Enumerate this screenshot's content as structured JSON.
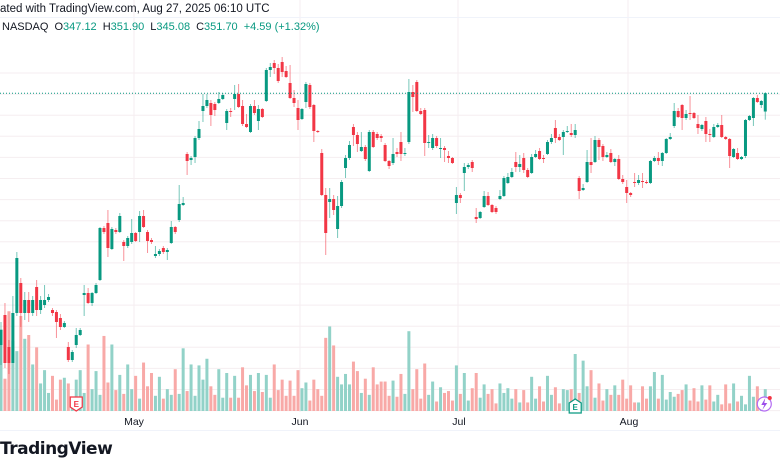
{
  "header": {
    "created_text": "ated with TradingView.com, Aug 27, 2025 06:10 UTC",
    "exchange": "NASDAQ",
    "open_label": "O",
    "open": "347.12",
    "high_label": "H",
    "high": "351.90",
    "low_label": "L",
    "low": "345.08",
    "close_label": "C",
    "close": "351.70",
    "change": "+4.59 (+1.32%)"
  },
  "logo": "TradingView",
  "colors": {
    "up": "#089981",
    "down": "#F23645",
    "up_vol": "#92d2c8",
    "down_vol": "#f8a9a7",
    "grid": "#f5eef0",
    "price_line": "#089981"
  },
  "chart_data": {
    "type": "candlestick",
    "symbol_exchange": "NASDAQ",
    "x_labels": [
      "May",
      "Jun",
      "Jul",
      "Aug"
    ],
    "last_price": 351.7,
    "markers": [
      {
        "type": "earnings",
        "label": "E",
        "direction": "down",
        "index": 19
      },
      {
        "type": "earnings",
        "label": "E",
        "direction": "up",
        "index": 145
      },
      {
        "type": "event",
        "label": "lightning",
        "index": 193
      }
    ],
    "ohlc": [
      [
        288.75,
        294.5,
        283.75,
        292.5
      ],
      [
        296.25,
        299.25,
        283,
        284.25
      ],
      [
        288.25,
        290,
        281.5,
        284.25
      ],
      [
        284.25,
        301,
        285,
        296.75
      ],
      [
        296.75,
        312,
        296,
        310.5
      ],
      [
        304.25,
        305.5,
        293.25,
        296.75
      ],
      [
        296.75,
        302,
        295,
        300
      ],
      [
        300,
        302,
        294.5,
        296.75
      ],
      [
        296.75,
        301,
        296,
        300
      ],
      [
        303.25,
        305,
        296,
        297.5
      ],
      [
        297.5,
        301,
        296.5,
        300
      ],
      [
        298.75,
        303.75,
        298,
        300
      ],
      [
        300,
        301.5,
        299.5,
        300.75
      ],
      [
        297.5,
        298,
        296,
        296.75
      ],
      [
        297,
        297.5,
        290.5,
        294.5
      ],
      [
        295.5,
        296.5,
        292.5,
        293.25
      ],
      [
        293.25,
        294.75,
        293,
        294.25
      ],
      [
        288.25,
        289.5,
        284.5,
        285
      ],
      [
        285,
        287.5,
        284.5,
        287
      ],
      [
        288.75,
        293,
        288,
        291.25
      ],
      [
        291.25,
        293,
        291,
        292.5
      ],
      [
        301.25,
        303.75,
        296,
        301.75
      ],
      [
        301.75,
        303,
        299,
        299.25
      ],
      [
        299.25,
        302,
        298.5,
        301.75
      ],
      [
        301.75,
        304.25,
        301.5,
        303.75
      ],
      [
        305,
        318.25,
        304.75,
        318
      ],
      [
        318,
        318.5,
        316.5,
        317
      ],
      [
        319.25,
        322.5,
        310.75,
        313
      ],
      [
        312.75,
        318.25,
        312.5,
        317.75
      ],
      [
        317.5,
        318,
        316.5,
        317
      ],
      [
        317,
        321.75,
        316.75,
        321
      ],
      [
        314.5,
        315,
        309.75,
        313.5
      ],
      [
        313.5,
        316,
        313,
        315.5
      ],
      [
        314.5,
        320.25,
        314,
        316.75
      ],
      [
        316.75,
        317,
        314.5,
        314.75
      ],
      [
        317,
        322.25,
        314.5,
        321
      ],
      [
        321,
        322.5,
        318,
        318.25
      ],
      [
        317,
        317.5,
        311.75,
        314.75
      ],
      [
        315,
        315.5,
        314,
        314.5
      ],
      [
        311,
        313.5,
        310.5,
        311.5
      ],
      [
        311.5,
        312.75,
        311,
        312.25
      ],
      [
        313,
        313.5,
        311.5,
        312
      ],
      [
        312,
        313,
        310,
        312.5
      ],
      [
        314.25,
        319.75,
        314,
        318.25
      ],
      [
        318.25,
        318.5,
        316.5,
        317
      ],
      [
        320,
        328.75,
        319.5,
        324
      ],
      [
        323.75,
        325.75,
        323.5,
        324.25
      ],
      [
        336.5,
        337,
        331.25,
        334.75
      ],
      [
        335,
        336,
        333.75,
        335.5
      ],
      [
        335.75,
        341,
        334.25,
        340.5
      ],
      [
        340.5,
        344.75,
        340,
        342.75
      ],
      [
        347.25,
        351.5,
        344.5,
        348.5
      ],
      [
        348.5,
        351.5,
        348,
        350
      ],
      [
        349.25,
        350,
        343.5,
        346.25
      ],
      [
        349,
        349.5,
        346,
        347.5
      ],
      [
        349.25,
        352,
        349,
        350.25
      ],
      [
        350.25,
        351.75,
        350,
        351.25
      ],
      [
        344.25,
        347.75,
        342.5,
        347.25
      ],
      [
        347.25,
        348,
        345.75,
        347
      ],
      [
        350.25,
        353.75,
        347.5,
        351.5
      ],
      [
        351.5,
        354,
        348,
        348.25
      ],
      [
        348.5,
        350,
        343.5,
        344
      ],
      [
        344,
        346.5,
        343,
        343.25
      ],
      [
        342,
        349,
        341.75,
        348.5
      ],
      [
        348.5,
        350,
        346.25,
        346.75
      ],
      [
        344.75,
        348.75,
        342.5,
        347.75
      ],
      [
        347.75,
        348,
        345.5,
        345.75
      ],
      [
        349.75,
        358,
        349.5,
        357.5
      ],
      [
        357.5,
        359.25,
        355.75,
        358.25
      ],
      [
        359.25,
        360,
        356.5,
        358
      ],
      [
        358,
        359,
        354.25,
        354.75
      ],
      [
        359.5,
        360.75,
        355.75,
        357
      ],
      [
        357.25,
        358.5,
        355.5,
        355.75
      ],
      [
        354.25,
        358.75,
        350.25,
        350.5
      ],
      [
        350.5,
        352.5,
        348.25,
        349.25
      ],
      [
        348,
        350,
        342.5,
        345
      ],
      [
        345.25,
        348,
        345,
        347.75
      ],
      [
        349.5,
        354.5,
        348,
        354
      ],
      [
        353.75,
        354.25,
        347.75,
        348.25
      ],
      [
        348.75,
        349,
        339.5,
        342.25
      ],
      [
        342.25,
        342.5,
        341.75,
        342
      ],
      [
        336.75,
        337.75,
        326,
        326.25
      ],
      [
        326.25,
        328,
        311.25,
        316.75
      ],
      [
        324.5,
        328,
        320.5,
        325.25
      ],
      [
        325.25,
        326.25,
        321.25,
        322.5
      ],
      [
        317.75,
        326,
        315.5,
        323.5
      ],
      [
        323.5,
        330,
        323,
        329.5
      ],
      [
        333,
        336.25,
        330.5,
        335.5
      ],
      [
        335.5,
        339.75,
        335,
        338.75
      ],
      [
        343.25,
        344,
        338.5,
        341.25
      ],
      [
        341.25,
        342,
        337,
        339
      ],
      [
        337.25,
        342,
        337,
        338.25
      ],
      [
        338.25,
        338.75,
        334.75,
        335.25
      ],
      [
        332.25,
        342.5,
        332,
        342
      ],
      [
        342,
        342.5,
        338,
        338.25
      ],
      [
        341.5,
        342,
        340,
        340.5
      ],
      [
        341,
        341.5,
        339.5,
        340.5
      ],
      [
        338.75,
        339.25,
        334.5,
        334.75
      ],
      [
        334.75,
        335,
        332.75,
        333.5
      ],
      [
        334.25,
        340.5,
        333.75,
        336.5
      ],
      [
        337,
        338,
        335.75,
        336.5
      ],
      [
        339.5,
        342,
        334.75,
        336.5
      ],
      [
        336.5,
        338,
        336,
        336.75
      ],
      [
        339.5,
        355.25,
        339,
        352
      ],
      [
        352,
        353.75,
        347,
        350.75
      ],
      [
        354.5,
        355,
        347,
        347.25
      ],
      [
        347.25,
        348,
        346.25,
        346.5
      ],
      [
        347.5,
        348,
        336,
        339.25
      ],
      [
        339.25,
        341.25,
        338,
        339.5
      ],
      [
        338,
        341.5,
        337.5,
        340.5
      ],
      [
        340.5,
        341,
        338,
        338.5
      ],
      [
        337.75,
        340.5,
        335.5,
        338
      ],
      [
        338,
        338.5,
        334.5,
        337.5
      ],
      [
        336,
        337.25,
        334.25,
        335.5
      ],
      [
        335.5,
        335.75,
        334,
        334.25
      ],
      [
        324.25,
        328.25,
        321.5,
        326.25
      ],
      [
        326.25,
        326.75,
        324.25,
        325.5
      ],
      [
        331.75,
        334.25,
        327.25,
        333.25
      ],
      [
        333.25,
        334.25,
        332.75,
        333.75
      ],
      [
        334.5,
        335,
        332,
        333
      ],
      [
        320.75,
        323,
        319.25,
        320.25
      ],
      [
        320.5,
        322.25,
        320.25,
        322
      ],
      [
        323.25,
        327.25,
        323,
        326
      ],
      [
        326,
        327,
        323.5,
        323.75
      ],
      [
        323.75,
        324,
        321.75,
        322
      ],
      [
        323,
        323.5,
        321.5,
        322
      ],
      [
        325.25,
        327.5,
        325,
        326
      ],
      [
        326,
        331,
        325.75,
        330.5
      ],
      [
        329.25,
        331.75,
        329,
        330.75
      ],
      [
        330.75,
        333,
        330.5,
        332
      ],
      [
        334.5,
        337,
        332,
        333.25
      ],
      [
        333.25,
        336.25,
        332,
        334
      ],
      [
        335.5,
        336.75,
        331.75,
        332.5
      ],
      [
        332.5,
        333,
        330.5,
        330.75
      ],
      [
        331.75,
        336.5,
        331.5,
        335.75
      ],
      [
        335.75,
        337.5,
        335.5,
        336.5
      ],
      [
        337.25,
        338,
        335,
        335.25
      ],
      [
        335.5,
        336.25,
        334.25,
        335.25
      ],
      [
        336.5,
        340,
        336.25,
        339.5
      ],
      [
        339.5,
        341.5,
        339,
        340.5
      ],
      [
        343,
        345,
        339.25,
        340.5
      ],
      [
        340.75,
        341.5,
        339.75,
        340
      ],
      [
        340.75,
        342.5,
        336.25,
        342
      ],
      [
        342,
        343.5,
        341.75,
        342.25
      ],
      [
        341.75,
        344,
        340.75,
        341.25
      ],
      [
        341.25,
        344,
        340.5,
        342.5
      ],
      [
        330.5,
        331,
        325.25,
        327.25
      ],
      [
        327.5,
        329,
        327.25,
        328
      ],
      [
        329.5,
        337.5,
        329.25,
        334.5
      ],
      [
        334.5,
        340.5,
        331.75,
        333.75
      ],
      [
        334.5,
        341,
        334.25,
        340
      ],
      [
        340,
        340.5,
        335,
        338.25
      ],
      [
        338.5,
        339,
        334.75,
        335.75
      ],
      [
        335.75,
        337,
        335.5,
        336.25
      ],
      [
        336.75,
        337.75,
        334.25,
        334.5
      ],
      [
        334.5,
        335.5,
        333.5,
        335.25
      ],
      [
        335.25,
        336.25,
        330,
        330.25
      ],
      [
        330.25,
        331.25,
        329,
        329.5
      ],
      [
        328.25,
        330,
        324.25,
        326.75
      ],
      [
        326.75,
        327,
        325.75,
        326.25
      ],
      [
        329.5,
        331.75,
        328.25,
        329.25
      ],
      [
        329.25,
        331.25,
        328.75,
        330
      ],
      [
        329.75,
        331.75,
        328,
        329.5
      ],
      [
        329.5,
        330,
        329,
        329.25
      ],
      [
        329.25,
        335,
        329,
        334.75
      ],
      [
        334.75,
        336,
        334.5,
        335.5
      ],
      [
        335.5,
        337,
        333.75,
        334.75
      ],
      [
        334.75,
        337,
        333.5,
        336.75
      ],
      [
        336.75,
        340.5,
        336.5,
        340.25
      ],
      [
        340.25,
        341.75,
        340,
        340.75
      ],
      [
        343.5,
        349.25,
        343,
        347.25
      ],
      [
        347.25,
        348,
        345.5,
        345.75
      ],
      [
        348.75,
        349,
        342.5,
        345.5
      ],
      [
        345.5,
        347.5,
        345,
        346.5
      ],
      [
        346.75,
        351,
        345,
        346.5
      ],
      [
        346.75,
        347,
        345.25,
        345.5
      ],
      [
        344,
        346.25,
        341.5,
        343
      ],
      [
        342.75,
        344,
        342.25,
        343.75
      ],
      [
        344.75,
        345.75,
        339.5,
        341.5
      ],
      [
        341.5,
        342.75,
        339.5,
        341.25
      ],
      [
        340.75,
        344,
        340.5,
        343.25
      ],
      [
        343.25,
        344.25,
        343,
        343.75
      ],
      [
        343.75,
        346.25,
        340.5,
        340.75
      ],
      [
        340.75,
        341,
        340,
        340.25
      ],
      [
        340.25,
        340.5,
        333,
        336
      ],
      [
        335.75,
        338,
        335.5,
        337.75
      ],
      [
        336.75,
        338,
        335,
        335.25
      ],
      [
        335.25,
        336,
        335,
        335.75
      ],
      [
        336,
        345.25,
        335.5,
        345
      ],
      [
        345,
        346.25,
        344.75,
        346
      ],
      [
        345.5,
        350.75,
        343.5,
        350.5
      ],
      [
        350.5,
        351.25,
        349.25,
        349.5
      ],
      [
        348.75,
        350,
        348,
        349.75
      ],
      [
        347.12,
        351.9,
        345.08,
        351.7
      ]
    ],
    "volume": [
      86,
      34,
      105,
      74,
      63,
      100,
      76,
      80,
      49,
      67,
      29,
      43,
      19,
      37,
      12,
      33,
      35,
      29,
      14,
      33,
      43,
      19,
      70,
      23,
      42,
      17,
      79,
      30,
      70,
      22,
      38,
      18,
      49,
      23,
      37,
      13,
      51,
      26,
      40,
      16,
      36,
      13,
      23,
      17,
      44,
      18,
      66,
      21,
      49,
      16,
      48,
      33,
      55,
      26,
      17,
      44,
      14,
      40,
      14,
      37,
      14,
      46,
      27,
      38,
      21,
      40,
      20,
      38,
      14,
      49,
      22,
      33,
      16,
      32,
      16,
      43,
      24,
      30,
      11,
      33,
      23,
      16,
      77,
      89,
      69,
      36,
      28,
      39,
      28,
      52,
      42,
      19,
      34,
      17,
      46,
      28,
      31,
      31,
      16,
      32,
      15,
      39,
      18,
      84,
      23,
      44,
      13,
      50,
      17,
      31,
      10,
      25,
      19,
      21,
      11,
      48,
      18,
      40,
      11,
      24,
      40,
      14,
      28,
      18,
      23,
      8,
      29,
      19,
      24,
      13,
      23,
      9,
      22,
      9,
      36,
      13,
      26,
      10,
      37,
      17,
      25,
      8,
      23,
      22,
      23,
      60,
      19,
      53,
      26,
      43,
      14,
      29,
      11,
      23,
      17,
      27,
      17,
      33,
      13,
      27,
      9,
      9,
      26,
      13,
      26,
      41,
      13,
      38,
      12,
      20,
      15,
      18,
      22,
      28,
      11,
      24,
      10,
      27,
      12,
      27,
      10,
      17,
      7,
      28,
      8,
      29,
      10,
      16,
      7,
      37,
      15,
      26,
      7,
      23
    ]
  }
}
